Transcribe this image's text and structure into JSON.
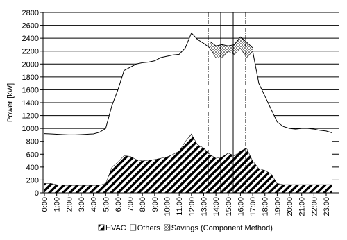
{
  "chart_data": {
    "type": "area",
    "y_label": "Power [kW]",
    "categories": [
      "0:00",
      null,
      "1:00",
      null,
      "2:00",
      null,
      "3:00",
      null,
      "4:00",
      null,
      "5:00",
      null,
      "6:00",
      null,
      "7:00",
      null,
      "8:00",
      null,
      "9:00",
      null,
      "10:00",
      null,
      "11:00",
      null,
      "12:00",
      null,
      "13:00",
      null,
      "14:00",
      null,
      "15:00",
      null,
      "16:00",
      null,
      "17:00",
      null,
      "18:00",
      null,
      "19:00",
      null,
      "20:00",
      null,
      "21:00",
      null,
      "22:00",
      null,
      "23:00",
      null
    ],
    "series": [
      {
        "name": "HVAC",
        "color": "#000000",
        "pattern": "hatch",
        "values": [
          150,
          150,
          130,
          120,
          120,
          120,
          120,
          120,
          120,
          120,
          150,
          400,
          480,
          580,
          570,
          520,
          500,
          510,
          520,
          540,
          560,
          600,
          650,
          800,
          920,
          750,
          700,
          600,
          540,
          560,
          620,
          580,
          650,
          700,
          500,
          380,
          350,
          300,
          150,
          130,
          130,
          130,
          130,
          130,
          130,
          130,
          130,
          130
        ]
      },
      {
        "name": "Others",
        "color": "#ffffff",
        "pattern": "none",
        "values": [
          770,
          765,
          780,
          785,
          780,
          780,
          785,
          790,
          795,
          820,
          850,
          950,
          1120,
          1320,
          1380,
          1480,
          1520,
          1520,
          1530,
          1560,
          1560,
          1540,
          1500,
          1450,
          1560,
          1630,
          1620,
          1650,
          1560,
          1540,
          1580,
          1570,
          1600,
          1400,
          1700,
          1320,
          1150,
          1000,
          950,
          900,
          870,
          860,
          870,
          870,
          860,
          840,
          830,
          800
        ]
      },
      {
        "name": "Savings (Component Method)",
        "color": "#000000",
        "pattern": "dots",
        "values": [
          null,
          null,
          null,
          null,
          null,
          null,
          null,
          null,
          null,
          null,
          null,
          null,
          null,
          null,
          null,
          null,
          null,
          null,
          null,
          null,
          null,
          null,
          null,
          null,
          null,
          null,
          null,
          100,
          180,
          200,
          80,
          150,
          170,
          240,
          50,
          null,
          null,
          null,
          null,
          null,
          null,
          null,
          null,
          null,
          null,
          null,
          null,
          null
        ]
      }
    ],
    "ylim": [
      0,
      2800
    ],
    "yticks": [
      0,
      200,
      400,
      600,
      800,
      1000,
      1200,
      1400,
      1600,
      1800,
      2000,
      2200,
      2400,
      2600,
      2800
    ],
    "grid": true
  }
}
